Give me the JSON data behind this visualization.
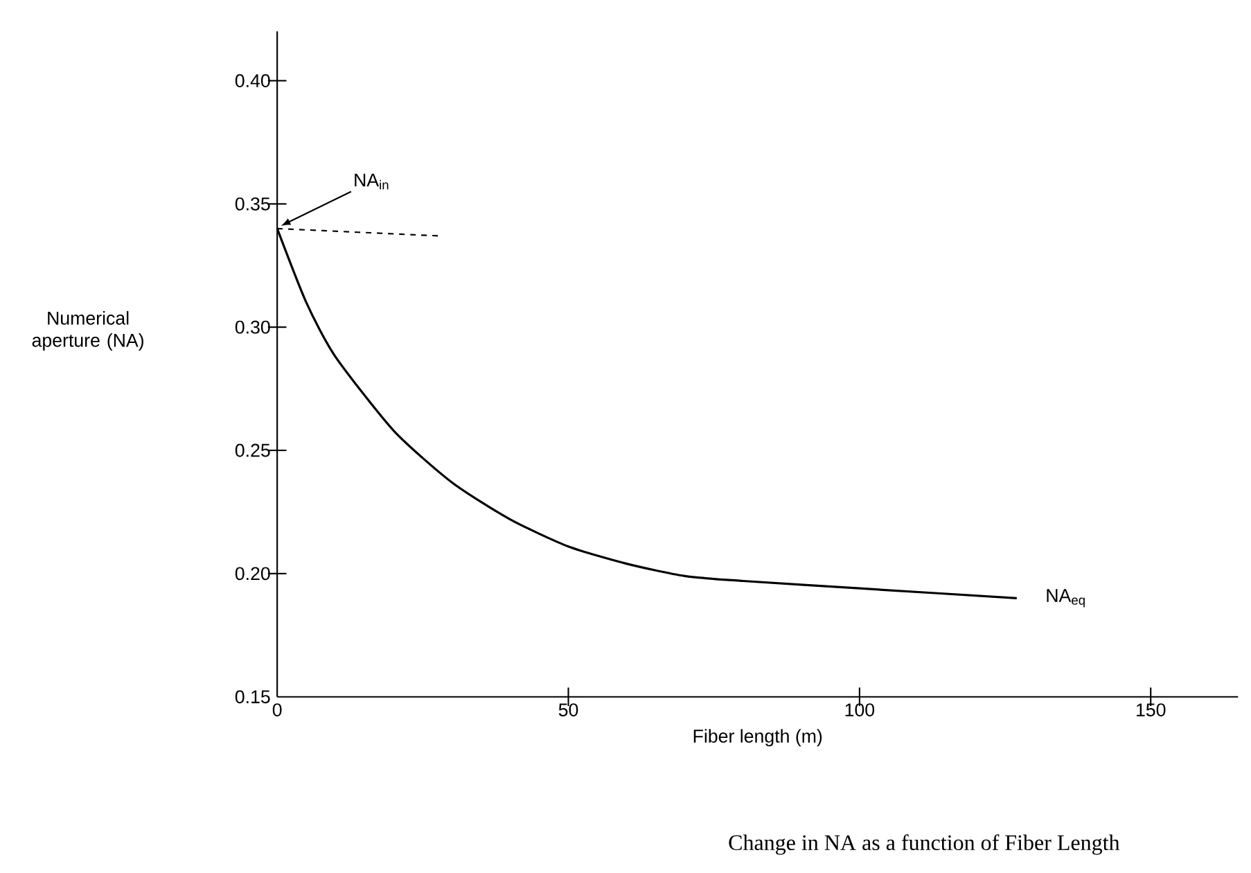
{
  "chart_data": {
    "type": "line",
    "xlabel": "Fiber length (m)",
    "ylabel": "Numerical aperture (NA)",
    "x": [
      0,
      5,
      10,
      20,
      30,
      40,
      50,
      60,
      70,
      80,
      100,
      127
    ],
    "series": [
      {
        "color": "#000000",
        "values": [
          0.34,
          0.31,
          0.288,
          0.258,
          0.237,
          0.222,
          0.211,
          0.204,
          0.199,
          0.197,
          0.194,
          0.19
        ]
      },
      {
        "color": "#000000",
        "x": [
          0,
          28
        ],
        "values": [
          0.34,
          0.337
        ],
        "line_style": "dashed"
      }
    ],
    "xlim": [
      0,
      165
    ],
    "ylim": [
      0.15,
      0.42
    ],
    "xticks": [
      0,
      50,
      100,
      150
    ],
    "yticks": [
      {
        "value": 0.15,
        "label": "0.15"
      },
      {
        "value": 0.2,
        "label": "0.20"
      },
      {
        "value": 0.25,
        "label": "0.25"
      },
      {
        "value": 0.3,
        "label": "0.30"
      },
      {
        "value": 0.35,
        "label": "0.35"
      },
      {
        "value": 0.4,
        "label": "0.40"
      }
    ],
    "grid": false,
    "marker": "none",
    "line_style": "solid",
    "annotations": [
      "NA$_{in}$",
      "NA$_{eq}$",
      "Change in NA as a function of Fiber Length"
    ]
  }
}
